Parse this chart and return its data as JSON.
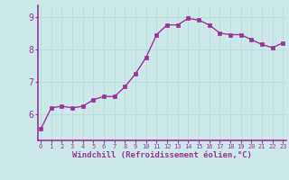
{
  "x": [
    0,
    1,
    2,
    3,
    4,
    5,
    6,
    7,
    8,
    9,
    10,
    11,
    12,
    13,
    14,
    15,
    16,
    17,
    18,
    19,
    20,
    21,
    22,
    23
  ],
  "y": [
    5.55,
    6.2,
    6.25,
    6.2,
    6.25,
    6.45,
    6.55,
    6.55,
    6.85,
    7.25,
    7.75,
    8.45,
    8.75,
    8.75,
    8.95,
    8.9,
    8.75,
    8.5,
    8.45,
    8.45,
    8.3,
    8.15,
    8.05,
    8.2
  ],
  "line_color": "#993399",
  "marker": "s",
  "markersize": 2.5,
  "linewidth": 1.0,
  "xlabel": "Windchill (Refroidissement éolien,°C)",
  "xlabel_fontsize": 6.5,
  "ylim": [
    5.2,
    9.35
  ],
  "yticks": [
    6,
    7,
    8,
    9
  ],
  "ytick_labels": [
    "6",
    "7",
    "8",
    "9"
  ],
  "xticks": [
    0,
    1,
    2,
    3,
    4,
    5,
    6,
    7,
    8,
    9,
    10,
    11,
    12,
    13,
    14,
    15,
    16,
    17,
    18,
    19,
    20,
    21,
    22,
    23
  ],
  "xlim": [
    -0.3,
    23.3
  ],
  "background_color": "#cce8e8",
  "grid_color": "#add8d8",
  "axis_line_color": "#993399",
  "tick_color": "#993399",
  "label_color": "#993399"
}
